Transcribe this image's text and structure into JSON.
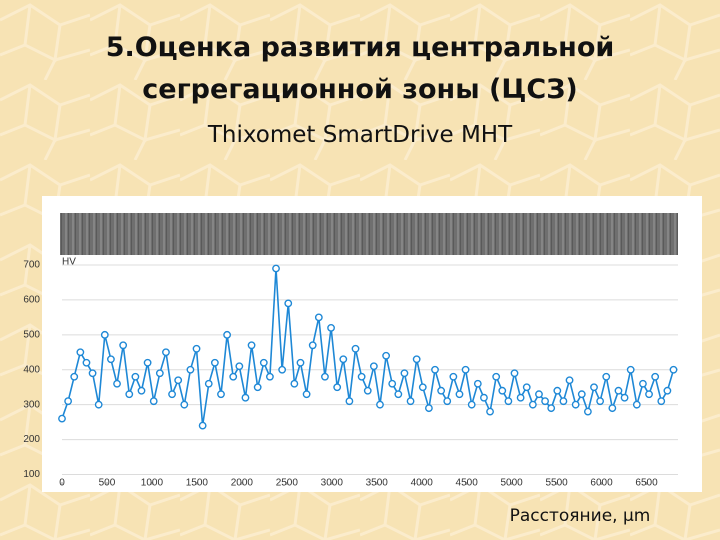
{
  "slide": {
    "title_lines": [
      "5.Оценка развития центральной",
      "сегрегационной зоны (ЦСЗ)"
    ],
    "subtitle": "Thixomet SmartDrive MHT"
  },
  "chart_data": {
    "type": "line",
    "y_label": "HV",
    "x_label": "Расстояние, µm",
    "color": "#1e88d6",
    "grid": true,
    "xlim": [
      0,
      6850
    ],
    "ylim": [
      70,
      720
    ],
    "xticks": [
      0,
      500,
      1000,
      1500,
      2000,
      2500,
      3000,
      3500,
      4000,
      4500,
      5000,
      5500,
      6000,
      6500
    ],
    "yticks": [
      100,
      200,
      300,
      400,
      500,
      600,
      700
    ],
    "x": [
      0,
      68,
      136,
      204,
      272,
      340,
      408,
      476,
      544,
      612,
      680,
      748,
      816,
      884,
      952,
      1020,
      1088,
      1156,
      1224,
      1292,
      1360,
      1428,
      1496,
      1564,
      1632,
      1700,
      1768,
      1836,
      1904,
      1972,
      2040,
      2108,
      2176,
      2244,
      2312,
      2380,
      2448,
      2516,
      2584,
      2652,
      2720,
      2788,
      2856,
      2924,
      2992,
      3060,
      3128,
      3196,
      3264,
      3332,
      3400,
      3468,
      3536,
      3604,
      3672,
      3740,
      3808,
      3876,
      3944,
      4012,
      4080,
      4148,
      4216,
      4284,
      4352,
      4420,
      4488,
      4556,
      4624,
      4692,
      4760,
      4828,
      4896,
      4964,
      5032,
      5100,
      5168,
      5236,
      5304,
      5372,
      5440,
      5508,
      5576,
      5644,
      5712,
      5780,
      5848,
      5916,
      5984,
      6052,
      6120,
      6188,
      6256,
      6324,
      6392,
      6460,
      6528,
      6596,
      6664,
      6732,
      6800
    ],
    "values": [
      260,
      310,
      380,
      450,
      420,
      390,
      300,
      500,
      430,
      360,
      470,
      330,
      380,
      340,
      420,
      310,
      390,
      450,
      330,
      370,
      300,
      400,
      460,
      240,
      360,
      420,
      330,
      500,
      380,
      410,
      320,
      470,
      350,
      420,
      380,
      690,
      400,
      590,
      360,
      420,
      330,
      470,
      550,
      380,
      520,
      350,
      430,
      310,
      460,
      380,
      340,
      410,
      300,
      440,
      360,
      330,
      390,
      310,
      430,
      350,
      290,
      400,
      340,
      310,
      380,
      330,
      400,
      300,
      360,
      320,
      280,
      380,
      340,
      310,
      390,
      320,
      350,
      300,
      330,
      310,
      290,
      340,
      310,
      370,
      300,
      330,
      280,
      350,
      310,
      380,
      290,
      340,
      320,
      400,
      300,
      360,
      330,
      380,
      310,
      340,
      400
    ]
  }
}
